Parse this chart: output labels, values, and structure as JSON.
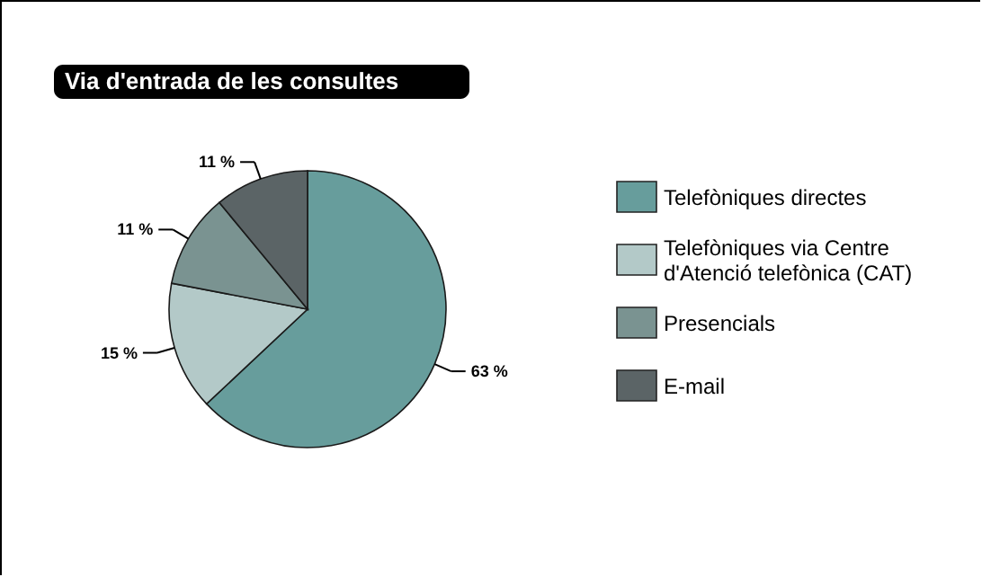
{
  "chart_data": {
    "type": "pie",
    "title": "Via d'entrada de les consultes",
    "categories": [
      "Telefòniques directes",
      "Telefòniques via Centre d'Atenció telefònica (CAT)",
      "Presencials",
      "E-mail"
    ],
    "values": [
      63,
      15,
      11,
      11
    ],
    "colors": [
      "#679d9c",
      "#b3c9c8",
      "#7a9391",
      "#5b6466"
    ],
    "value_labels": [
      "63 %",
      "15 %",
      "11 %",
      "11 %"
    ],
    "legend": "right"
  }
}
